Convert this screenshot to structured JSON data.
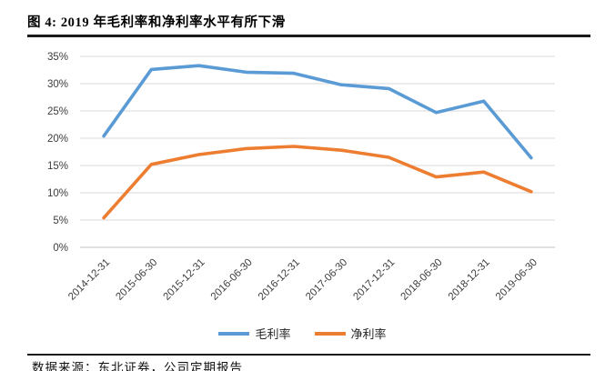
{
  "figure": {
    "title": "图 4: 2019 年毛利率和净利率水平有所下滑",
    "source_note": "数据来源：东北证券，公司定期报告"
  },
  "chart_data": {
    "type": "line",
    "title": "",
    "xlabel": "",
    "ylabel": "",
    "categories": [
      "2014-12-31",
      "2015-06-30",
      "2015-12-31",
      "2016-06-30",
      "2016-12-31",
      "2017-06-30",
      "2017-12-31",
      "2018-06-30",
      "2018-12-31",
      "2019-06-30"
    ],
    "series": [
      {
        "id": "gross-margin",
        "name": "毛利率",
        "color": "#5B9BD5",
        "values": [
          20.4,
          32.6,
          33.3,
          32.1,
          31.9,
          29.8,
          29.1,
          24.7,
          26.8,
          16.4
        ]
      },
      {
        "id": "net-margin",
        "name": "净利率",
        "color": "#ED7D31",
        "values": [
          5.4,
          15.2,
          17.0,
          18.1,
          18.5,
          17.8,
          16.5,
          12.9,
          13.8,
          10.2
        ]
      }
    ],
    "ylim": [
      0,
      35
    ],
    "y_tick_step": 5,
    "y_tick_labels": [
      "0%",
      "5%",
      "10%",
      "15%",
      "20%",
      "25%",
      "30%",
      "35%"
    ],
    "grid": true,
    "legend_position": "bottom",
    "gridline_color": "#D9D9D9",
    "axis_line_color": "#BFBFBF",
    "tick_label_color": "#3d3d3d"
  }
}
